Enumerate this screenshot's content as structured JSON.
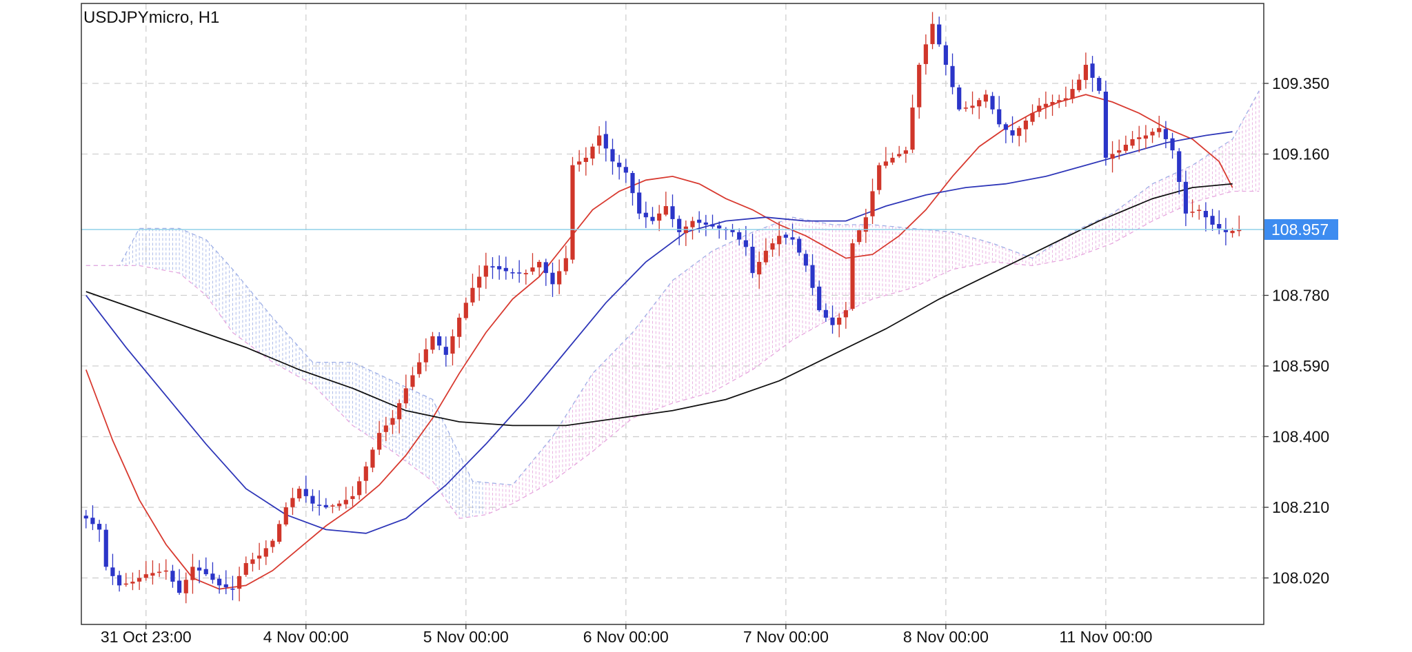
{
  "header": {
    "symbol_timeframe": "USDJPYmicro, H1"
  },
  "colors": {
    "bull": "#d0362a",
    "bear": "#2b35c8",
    "ma_red": "#d83a30",
    "ma_blue": "#2e36b8",
    "ma_black": "#111111",
    "cloud_blue": "#9fb0e6",
    "cloud_pink": "#e6a6de",
    "bid_line": "#8fd0e8",
    "price_tag": "#3d8cf0",
    "grid": "#cfcfcf",
    "frame": "#333333"
  },
  "chart_data": {
    "type": "candlestick",
    "title": "USDJPYmicro, H1",
    "ylim": [
      107.895,
      109.565
    ],
    "y_ticks": [
      109.35,
      109.16,
      108.78,
      108.59,
      108.4,
      108.21,
      108.02
    ],
    "y_tick_labels": [
      "109.350",
      "109.160",
      "108.780",
      "108.590",
      "108.400",
      "108.210",
      "108.020"
    ],
    "x_ticks": [
      {
        "i": 9,
        "label": "31 Oct 23:00"
      },
      {
        "i": 33,
        "label": "4 Nov 00:00"
      },
      {
        "i": 57,
        "label": "5 Nov 00:00"
      },
      {
        "i": 81,
        "label": "6 Nov 00:00"
      },
      {
        "i": 105,
        "label": "7 Nov 00:00"
      },
      {
        "i": 129,
        "label": "8 Nov 00:00"
      },
      {
        "i": 153,
        "label": "11 Nov 00:00"
      }
    ],
    "current_price": 108.957,
    "current_price_label": "108.957",
    "grid": true,
    "series": [
      {
        "name": "",
        "type": "candles",
        "close_path": [
          [
            0,
            108.18
          ],
          [
            2,
            108.15
          ],
          [
            3,
            108.05
          ],
          [
            5,
            108.0
          ],
          [
            7,
            108.01
          ],
          [
            9,
            108.03
          ],
          [
            12,
            108.04
          ],
          [
            14,
            107.98
          ],
          [
            16,
            108.05
          ],
          [
            18,
            108.03
          ],
          [
            20,
            108.0
          ],
          [
            22,
            107.99
          ],
          [
            24,
            108.06
          ],
          [
            26,
            108.08
          ],
          [
            28,
            108.12
          ],
          [
            30,
            108.21
          ],
          [
            32,
            108.26
          ],
          [
            34,
            108.22
          ],
          [
            36,
            108.21
          ],
          [
            38,
            108.22
          ],
          [
            40,
            108.24
          ],
          [
            42,
            108.32
          ],
          [
            44,
            108.41
          ],
          [
            46,
            108.45
          ],
          [
            48,
            108.53
          ],
          [
            50,
            108.6
          ],
          [
            52,
            108.67
          ],
          [
            54,
            108.62
          ],
          [
            56,
            108.72
          ],
          [
            58,
            108.8
          ],
          [
            60,
            108.86
          ],
          [
            62,
            108.85
          ],
          [
            64,
            108.84
          ],
          [
            66,
            108.84
          ],
          [
            68,
            108.87
          ],
          [
            70,
            108.81
          ],
          [
            72,
            108.88
          ],
          [
            73,
            109.13
          ],
          [
            75,
            109.15
          ],
          [
            77,
            109.21
          ],
          [
            79,
            109.14
          ],
          [
            81,
            109.11
          ],
          [
            83,
            109.0
          ],
          [
            85,
            108.98
          ],
          [
            87,
            109.02
          ],
          [
            89,
            108.95
          ],
          [
            91,
            108.98
          ],
          [
            93,
            108.97
          ],
          [
            95,
            108.96
          ],
          [
            97,
            108.95
          ],
          [
            99,
            108.91
          ],
          [
            100,
            108.84
          ],
          [
            102,
            108.9
          ],
          [
            104,
            108.94
          ],
          [
            106,
            108.93
          ],
          [
            108,
            108.86
          ],
          [
            110,
            108.74
          ],
          [
            112,
            108.7
          ],
          [
            114,
            108.74
          ],
          [
            115,
            108.92
          ],
          [
            117,
            108.99
          ],
          [
            119,
            109.13
          ],
          [
            121,
            109.15
          ],
          [
            123,
            109.17
          ],
          [
            125,
            109.4
          ],
          [
            127,
            109.51
          ],
          [
            129,
            109.4
          ],
          [
            131,
            109.28
          ],
          [
            133,
            109.29
          ],
          [
            135,
            109.32
          ],
          [
            137,
            109.24
          ],
          [
            139,
            109.21
          ],
          [
            141,
            109.25
          ],
          [
            143,
            109.29
          ],
          [
            145,
            109.3
          ],
          [
            147,
            109.31
          ],
          [
            149,
            109.36
          ],
          [
            150,
            109.4
          ],
          [
            152,
            109.33
          ],
          [
            153,
            109.15
          ],
          [
            155,
            109.17
          ],
          [
            157,
            109.2
          ],
          [
            159,
            109.21
          ],
          [
            161,
            109.23
          ],
          [
            163,
            109.17
          ],
          [
            165,
            109.0
          ],
          [
            167,
            109.01
          ],
          [
            169,
            108.97
          ],
          [
            171,
            108.95
          ],
          [
            173,
            108.957
          ]
        ]
      },
      {
        "name": "",
        "type": "line",
        "color_key": "ma_red",
        "points": [
          [
            0,
            108.58
          ],
          [
            4,
            108.39
          ],
          [
            8,
            108.23
          ],
          [
            12,
            108.11
          ],
          [
            16,
            108.02
          ],
          [
            20,
            107.99
          ],
          [
            24,
            108.0
          ],
          [
            28,
            108.04
          ],
          [
            32,
            108.1
          ],
          [
            36,
            108.16
          ],
          [
            40,
            108.21
          ],
          [
            44,
            108.27
          ],
          [
            48,
            108.35
          ],
          [
            52,
            108.45
          ],
          [
            56,
            108.57
          ],
          [
            60,
            108.68
          ],
          [
            64,
            108.77
          ],
          [
            68,
            108.83
          ],
          [
            72,
            108.92
          ],
          [
            76,
            109.01
          ],
          [
            80,
            109.06
          ],
          [
            84,
            109.09
          ],
          [
            88,
            109.1
          ],
          [
            92,
            109.08
          ],
          [
            96,
            109.04
          ],
          [
            100,
            109.01
          ],
          [
            104,
            108.97
          ],
          [
            108,
            108.94
          ],
          [
            112,
            108.9
          ],
          [
            114,
            108.88
          ],
          [
            118,
            108.89
          ],
          [
            122,
            108.94
          ],
          [
            126,
            109.01
          ],
          [
            130,
            109.1
          ],
          [
            134,
            109.18
          ],
          [
            138,
            109.23
          ],
          [
            142,
            109.27
          ],
          [
            146,
            109.3
          ],
          [
            150,
            109.32
          ],
          [
            154,
            109.3
          ],
          [
            158,
            109.27
          ],
          [
            162,
            109.23
          ],
          [
            166,
            109.2
          ],
          [
            170,
            109.14
          ],
          [
            172,
            109.07
          ]
        ]
      },
      {
        "name": "",
        "type": "line",
        "color_key": "ma_blue",
        "points": [
          [
            0,
            108.78
          ],
          [
            6,
            108.64
          ],
          [
            12,
            108.51
          ],
          [
            18,
            108.38
          ],
          [
            24,
            108.26
          ],
          [
            30,
            108.19
          ],
          [
            36,
            108.15
          ],
          [
            42,
            108.14
          ],
          [
            48,
            108.18
          ],
          [
            54,
            108.27
          ],
          [
            60,
            108.38
          ],
          [
            66,
            108.5
          ],
          [
            72,
            108.63
          ],
          [
            78,
            108.76
          ],
          [
            84,
            108.87
          ],
          [
            90,
            108.95
          ],
          [
            96,
            108.98
          ],
          [
            102,
            108.99
          ],
          [
            108,
            108.98
          ],
          [
            114,
            108.98
          ],
          [
            120,
            109.02
          ],
          [
            126,
            109.05
          ],
          [
            132,
            109.07
          ],
          [
            138,
            109.08
          ],
          [
            144,
            109.1
          ],
          [
            150,
            109.13
          ],
          [
            156,
            109.16
          ],
          [
            162,
            109.19
          ],
          [
            168,
            109.21
          ],
          [
            172,
            109.22
          ]
        ]
      },
      {
        "name": "",
        "type": "line",
        "color_key": "ma_black",
        "points": [
          [
            0,
            108.79
          ],
          [
            8,
            108.74
          ],
          [
            16,
            108.69
          ],
          [
            24,
            108.64
          ],
          [
            32,
            108.58
          ],
          [
            40,
            108.53
          ],
          [
            48,
            108.47
          ],
          [
            56,
            108.44
          ],
          [
            64,
            108.43
          ],
          [
            72,
            108.43
          ],
          [
            80,
            108.45
          ],
          [
            88,
            108.47
          ],
          [
            96,
            108.5
          ],
          [
            104,
            108.55
          ],
          [
            112,
            108.62
          ],
          [
            120,
            108.69
          ],
          [
            128,
            108.77
          ],
          [
            136,
            108.84
          ],
          [
            144,
            108.91
          ],
          [
            152,
            108.98
          ],
          [
            160,
            109.04
          ],
          [
            166,
            109.07
          ],
          [
            172,
            109.08
          ]
        ]
      },
      {
        "name": "",
        "type": "cloud",
        "upper_path": [
          [
            0,
            108.86
          ],
          [
            5,
            108.86
          ],
          [
            8,
            108.96
          ],
          [
            14,
            108.96
          ],
          [
            18,
            108.93
          ],
          [
            22,
            108.85
          ],
          [
            28,
            108.72
          ],
          [
            34,
            108.6
          ],
          [
            40,
            108.6
          ],
          [
            46,
            108.55
          ],
          [
            52,
            108.5
          ],
          [
            58,
            108.28
          ],
          [
            64,
            108.27
          ],
          [
            70,
            108.4
          ],
          [
            76,
            108.57
          ],
          [
            82,
            108.68
          ],
          [
            88,
            108.82
          ],
          [
            94,
            108.9
          ],
          [
            100,
            108.95
          ],
          [
            106,
            108.99
          ],
          [
            112,
            108.97
          ],
          [
            118,
            108.97
          ],
          [
            124,
            108.96
          ],
          [
            130,
            108.95
          ],
          [
            136,
            108.92
          ],
          [
            142,
            108.88
          ],
          [
            148,
            108.95
          ],
          [
            154,
            109.0
          ],
          [
            160,
            109.08
          ],
          [
            166,
            109.13
          ],
          [
            172,
            109.2
          ],
          [
            176,
            109.33
          ]
        ],
        "lower_path": [
          [
            0,
            108.86
          ],
          [
            8,
            108.86
          ],
          [
            14,
            108.84
          ],
          [
            18,
            108.78
          ],
          [
            22,
            108.68
          ],
          [
            28,
            108.6
          ],
          [
            34,
            108.54
          ],
          [
            40,
            108.43
          ],
          [
            46,
            108.36
          ],
          [
            52,
            108.28
          ],
          [
            56,
            108.18
          ],
          [
            60,
            108.19
          ],
          [
            64,
            108.22
          ],
          [
            70,
            108.28
          ],
          [
            76,
            108.36
          ],
          [
            82,
            108.45
          ],
          [
            88,
            108.49
          ],
          [
            94,
            108.52
          ],
          [
            100,
            108.58
          ],
          [
            106,
            108.66
          ],
          [
            112,
            108.72
          ],
          [
            118,
            108.77
          ],
          [
            124,
            108.8
          ],
          [
            130,
            108.85
          ],
          [
            136,
            108.87
          ],
          [
            142,
            108.86
          ],
          [
            148,
            108.88
          ],
          [
            154,
            108.92
          ],
          [
            160,
            108.98
          ],
          [
            166,
            109.03
          ],
          [
            172,
            109.06
          ],
          [
            176,
            109.06
          ]
        ]
      }
    ]
  }
}
